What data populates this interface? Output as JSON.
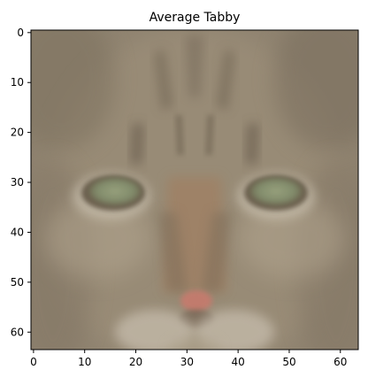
{
  "chart_data": {
    "type": "heatmap",
    "title": "Average Tabby",
    "xlabel": "",
    "ylabel": "",
    "x_ticks": [
      0,
      10,
      20,
      30,
      40,
      50,
      60
    ],
    "y_ticks": [
      0,
      10,
      20,
      30,
      40,
      50,
      60
    ],
    "xlim": [
      -0.5,
      63.5
    ],
    "ylim": [
      63.5,
      -0.5
    ],
    "grid": false,
    "image_shape": [
      64,
      64,
      3
    ],
    "content": "averaged tabby cat face image",
    "colors": {
      "background": "#8f8370",
      "fur_light": "#a89b85",
      "fur_dark": "#5f5446",
      "eye_iris": "#848e6e",
      "eye_outline": "#6a5b49",
      "nose": "#c67a6d",
      "muzzle": "#c9c0b0"
    }
  }
}
